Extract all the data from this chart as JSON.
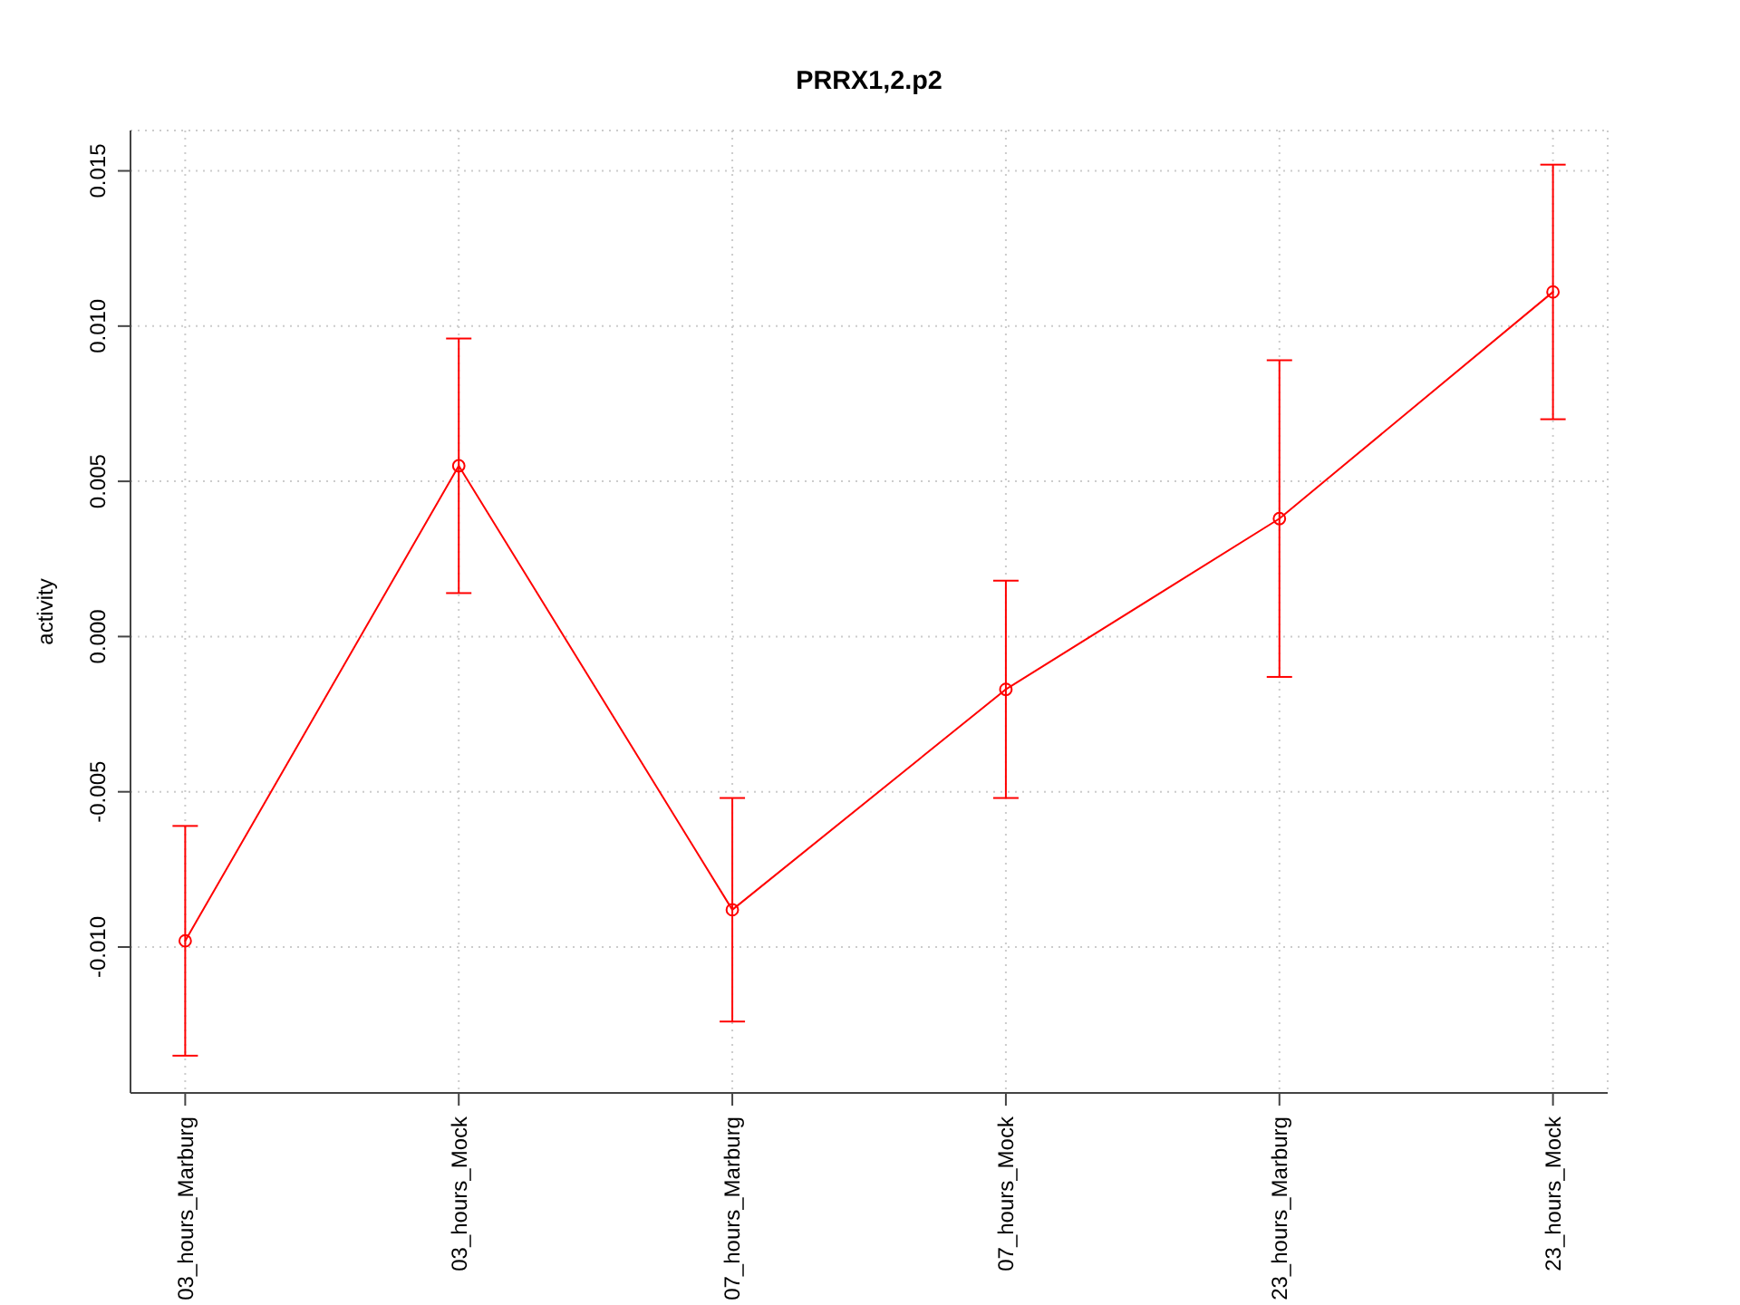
{
  "chart_data": {
    "type": "line",
    "title": "PRRX1,2.p2",
    "ylabel": "activity",
    "categories": [
      "03_hours_Marburg",
      "03_hours_Mock",
      "07_hours_Marburg",
      "07_hours_Mock",
      "23_hours_Marburg",
      "23_hours_Mock"
    ],
    "series": [
      {
        "color": "#ff0000",
        "values": [
          -0.0098,
          0.0055,
          -0.0088,
          -0.0017,
          0.0038,
          0.0111
        ],
        "errors": [
          0.0037,
          0.0041,
          0.0036,
          0.0035,
          0.0051,
          0.0041
        ]
      }
    ],
    "ylim": [
      -0.0147,
      0.0163
    ],
    "yticks": [
      {
        "value": -0.01,
        "label": "-0.010"
      },
      -0.005,
      {
        "value": 0,
        "label": "0.000"
      },
      0.005,
      {
        "value": 0.01,
        "label": "0.010"
      },
      0.015
    ],
    "grid": true,
    "marker": "circle",
    "line_style": "solid"
  }
}
